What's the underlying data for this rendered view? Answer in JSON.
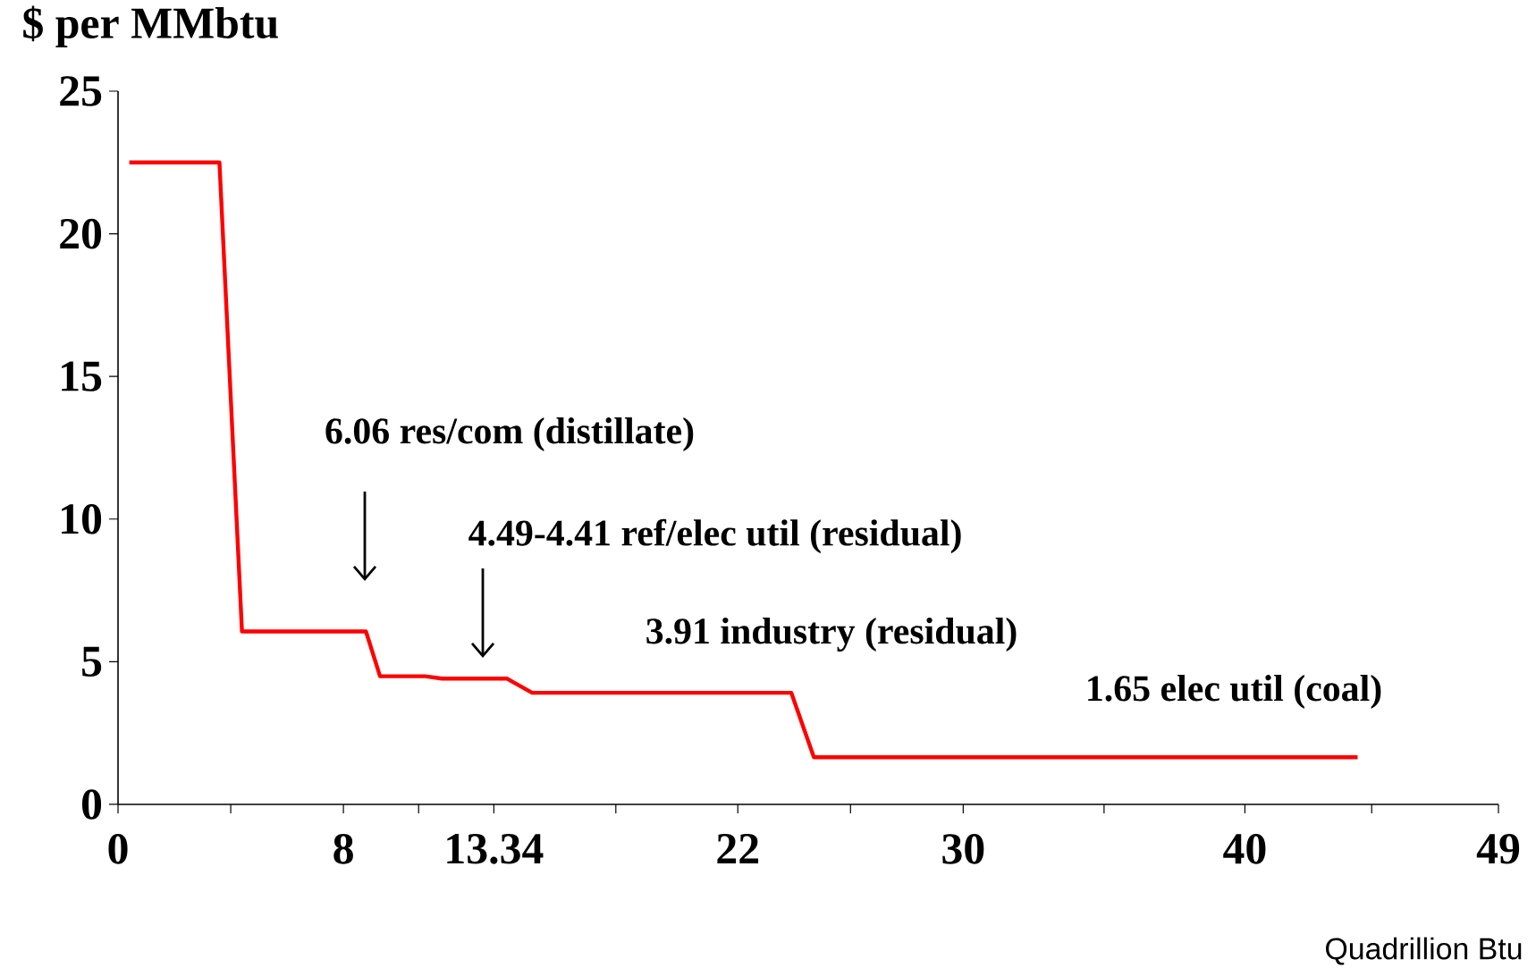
{
  "chart_data": {
    "type": "line",
    "ylabel": "$ per MMbtu",
    "xlabel": "Quadrillion Btu",
    "x": [
      0.4,
      3.6,
      4.4,
      8.8,
      9.3,
      10.9,
      11.5,
      13.8,
      14.7,
      23.9,
      24.7,
      44
    ],
    "values": [
      22.5,
      22.5,
      6.06,
      6.06,
      4.49,
      4.49,
      4.41,
      4.41,
      3.91,
      3.91,
      1.65,
      1.65
    ],
    "color": "#ff0000",
    "xlim": [
      0,
      49
    ],
    "xticks": [
      0,
      {
        "value": 4,
        "label": null
      },
      8,
      {
        "value": 10.67,
        "label": null
      },
      13.34,
      {
        "value": 17.67,
        "label": null
      },
      22,
      {
        "value": 26,
        "label": null
      },
      30,
      {
        "value": 35,
        "label": null
      },
      40,
      {
        "value": 44.5,
        "label": null
      },
      49
    ],
    "ylim": [
      0,
      25
    ],
    "yticks": [
      0,
      5,
      10,
      15,
      20,
      25
    ],
    "annotations": [
      "6.06 res/com (distillate)",
      "4.49-4.41 ref/elec util (residual)",
      "3.91 industry (residual)",
      "1.65 elec util (coal)"
    ]
  }
}
